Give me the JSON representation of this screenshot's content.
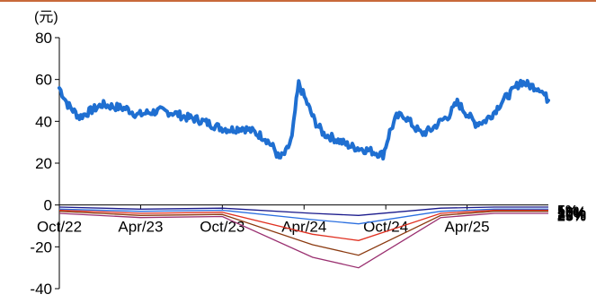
{
  "chart_data": {
    "type": "line",
    "unit_label": "(元)",
    "ylim": [
      -40,
      80
    ],
    "yticks": [
      "80",
      "60",
      "40",
      "20",
      "0",
      "-20",
      "-40"
    ],
    "ytick_values": [
      80,
      60,
      40,
      20,
      0,
      -20,
      -40
    ],
    "x_range": [
      "2022-10-01",
      "2025-09-30"
    ],
    "xticks": [
      {
        "label": "Oct/22",
        "date": "2022-10-01"
      },
      {
        "label": "Apr/23",
        "date": "2023-04-01"
      },
      {
        "label": "Oct/23",
        "date": "2023-10-01"
      },
      {
        "label": "Apr/24",
        "date": "2024-04-01"
      },
      {
        "label": "Oct/24",
        "date": "2024-10-01"
      },
      {
        "label": "Apr/25",
        "date": "2025-04-01"
      }
    ],
    "price": {
      "color": "#1f6fd1",
      "x": [
        "2022-10-01",
        "2022-10-20",
        "2022-11-15",
        "2022-12-10",
        "2023-01-05",
        "2023-02-01",
        "2023-03-01",
        "2023-03-25",
        "2023-04-15",
        "2023-05-15",
        "2023-06-15",
        "2023-07-10",
        "2023-08-05",
        "2023-09-01",
        "2023-09-25",
        "2023-10-20",
        "2023-11-15",
        "2023-12-10",
        "2024-01-05",
        "2024-01-25",
        "2024-02-05",
        "2024-02-20",
        "2024-03-05",
        "2024-03-12",
        "2024-03-20",
        "2024-04-05",
        "2024-04-25",
        "2024-05-15",
        "2024-06-05",
        "2024-06-25",
        "2024-07-15",
        "2024-08-05",
        "2024-08-25",
        "2024-09-10",
        "2024-09-25",
        "2024-10-10",
        "2024-10-25",
        "2024-11-10",
        "2024-12-01",
        "2024-12-20",
        "2025-01-10",
        "2025-02-01",
        "2025-02-20",
        "2025-03-10",
        "2025-03-30",
        "2025-04-20",
        "2025-05-10",
        "2025-05-30",
        "2025-06-20",
        "2025-07-10",
        "2025-07-30",
        "2025-08-20",
        "2025-09-10",
        "2025-09-30"
      ],
      "y": [
        56,
        48,
        42,
        45,
        48,
        47,
        46,
        43,
        44,
        45,
        44,
        42,
        41,
        39,
        37,
        36,
        37,
        35,
        32,
        27,
        22,
        25,
        32,
        45,
        58,
        50,
        40,
        34,
        32,
        30,
        28,
        27,
        26,
        25,
        24,
        35,
        42,
        43,
        38,
        34,
        36,
        40,
        43,
        49,
        44,
        39,
        40,
        44,
        50,
        54,
        59,
        57,
        56,
        50
      ]
    },
    "drawdown_series": [
      {
        "name": "5%",
        "color": "#1a1a8c",
        "x": [
          "2022-10-01",
          "2023-04-01",
          "2023-10-01",
          "2024-04-20",
          "2024-08-01",
          "2025-02-01",
          "2025-06-01",
          "2025-09-30"
        ],
        "y": [
          -1,
          -2,
          -1.5,
          -4,
          -5,
          -1.5,
          -1,
          -1
        ]
      },
      {
        "name": "10%",
        "color": "#2b6fe0",
        "x": [
          "2022-10-01",
          "2023-04-01",
          "2023-10-01",
          "2024-04-20",
          "2024-08-01",
          "2025-02-01",
          "2025-06-01",
          "2025-09-30"
        ],
        "y": [
          -2,
          -3,
          -2.5,
          -7,
          -9,
          -3,
          -2,
          -2
        ]
      },
      {
        "name": "15%",
        "color": "#e03020",
        "x": [
          "2022-10-01",
          "2023-04-01",
          "2023-10-01",
          "2024-04-20",
          "2024-08-01",
          "2025-02-01",
          "2025-06-01",
          "2025-09-30"
        ],
        "y": [
          -2.5,
          -4,
          -3.5,
          -14,
          -17,
          -4,
          -2.5,
          -2.5
        ]
      },
      {
        "name": "20%",
        "color": "#8b3a10",
        "x": [
          "2022-10-01",
          "2023-04-01",
          "2023-10-01",
          "2024-04-20",
          "2024-08-01",
          "2025-02-01",
          "2025-06-01",
          "2025-09-30"
        ],
        "y": [
          -3,
          -5,
          -4.5,
          -19,
          -24,
          -5,
          -3,
          -3
        ]
      },
      {
        "name": "25%",
        "color": "#9a3070",
        "x": [
          "2022-10-01",
          "2023-04-01",
          "2023-10-01",
          "2024-04-20",
          "2024-08-01",
          "2025-02-01",
          "2025-06-01",
          "2025-09-30"
        ],
        "y": [
          -4,
          -6,
          -5.5,
          -25,
          -30,
          -6,
          -4,
          -4
        ]
      }
    ]
  }
}
